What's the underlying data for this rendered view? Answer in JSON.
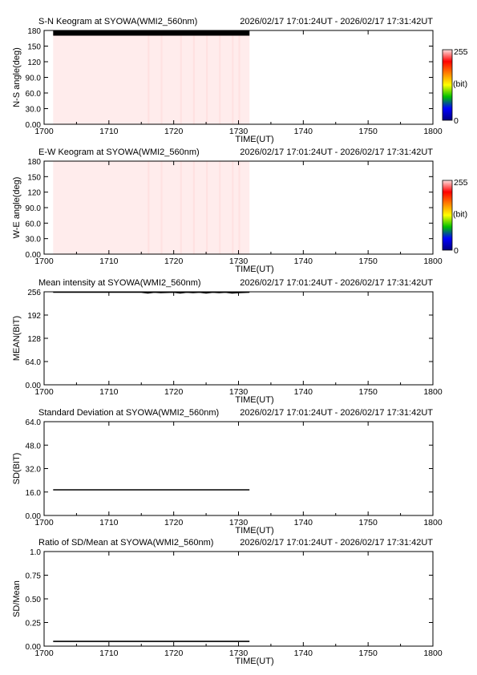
{
  "time_range": "2026/02/17 17:01:24UT - 2026/02/17 17:31:42UT",
  "xlabel": "TIME(UT)",
  "x_ticks": [
    1700,
    1710,
    1720,
    1730,
    1740,
    1750,
    1800
  ],
  "colorbar": {
    "max_label": "255",
    "min_label": "0",
    "unit_label": "(bit)",
    "colors": [
      "#000080",
      "#0000ff",
      "#00c000",
      "#ffff00",
      "#ff8000",
      "#ff0000",
      "#ffe0e0"
    ]
  },
  "chart_data": [
    {
      "type": "heatmap",
      "title": "S-N Keogram at SYOWA(WMI2_560nm)",
      "ylabel": "N-S angle(deg)",
      "y_ticks": [
        "0.00",
        "30.0",
        "60.0",
        "90.0",
        "120",
        "150",
        "180"
      ],
      "ylim": [
        0,
        180
      ],
      "x_categories": [
        "1700",
        "1710",
        "1720",
        "1730",
        "1740",
        "1750",
        "1800"
      ],
      "data_extent_x": [
        1701.4,
        1731.7
      ],
      "fill_value": 255,
      "fill_color": "#ffecec",
      "top_band": {
        "ylim": [
          170,
          180
        ],
        "color": "#000000"
      },
      "vertical_streaks": [
        1716,
        1718,
        1721,
        1723,
        1725,
        1727,
        1729,
        1730
      ]
    },
    {
      "type": "heatmap",
      "title": "E-W Keogram at SYOWA(WMI2_560nm)",
      "ylabel": "W-E angle(deg)",
      "y_ticks": [
        "0.00",
        "30.0",
        "60.0",
        "90.0",
        "120",
        "150",
        "180"
      ],
      "ylim": [
        0,
        180
      ],
      "x_categories": [
        "1700",
        "1710",
        "1720",
        "1730",
        "1740",
        "1750",
        "1800"
      ],
      "data_extent_x": [
        1701.4,
        1731.7
      ],
      "fill_value": 255,
      "fill_color": "#ffecec",
      "vertical_streaks": [
        1716,
        1718,
        1721,
        1723,
        1725,
        1727,
        1729,
        1730
      ]
    },
    {
      "type": "line",
      "title": "Mean intensity at SYOWA(WMI2_560nm)",
      "ylabel": "MEAN(BIT)",
      "y_ticks": [
        "0.00",
        "64.0",
        "128",
        "192",
        "256"
      ],
      "ylim": [
        0,
        256
      ],
      "x_categories": [
        "1700",
        "1710",
        "1720",
        "1730",
        "1740",
        "1750",
        "1800"
      ],
      "series": [
        {
          "x": [
            1701.4,
            1705,
            1710,
            1715,
            1716,
            1717,
            1718,
            1720,
            1721,
            1722,
            1723,
            1724,
            1725,
            1726,
            1727,
            1728,
            1729,
            1730,
            1731.7
          ],
          "y": [
            255,
            255,
            255,
            255,
            253,
            255,
            254,
            255,
            253,
            255,
            254,
            255,
            253,
            255,
            254,
            255,
            253,
            254,
            255
          ]
        }
      ]
    },
    {
      "type": "line",
      "title": "Standard Deviation at SYOWA(WMI2_560nm)",
      "ylabel": "SD(BIT)",
      "y_ticks": [
        "0.00",
        "16.0",
        "32.0",
        "48.0",
        "64.0"
      ],
      "ylim": [
        0,
        64
      ],
      "x_categories": [
        "1700",
        "1710",
        "1720",
        "1730",
        "1740",
        "1750",
        "1800"
      ],
      "series": [
        {
          "x": [
            1701.4,
            1731.7
          ],
          "y": [
            17.5,
            17.5
          ]
        }
      ]
    },
    {
      "type": "line",
      "title": "Ratio of SD/Mean at SYOWA(WMI2_560nm)",
      "ylabel": "SD/Mean",
      "y_ticks": [
        "0.00",
        "0.25",
        "0.50",
        "0.75",
        "1.0"
      ],
      "ylim": [
        0,
        1
      ],
      "x_categories": [
        "1700",
        "1710",
        "1720",
        "1730",
        "1740",
        "1750",
        "1800"
      ],
      "series": [
        {
          "x": [
            1701.4,
            1731.7
          ],
          "y": [
            0.05,
            0.05
          ]
        }
      ]
    }
  ]
}
